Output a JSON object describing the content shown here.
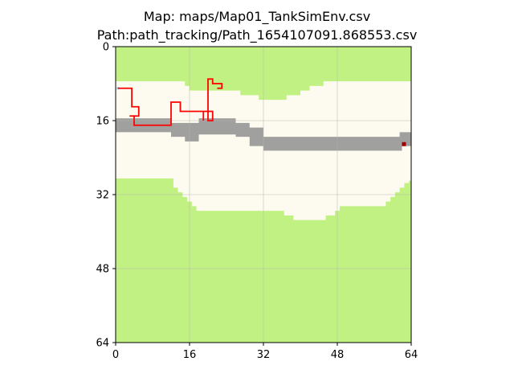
{
  "header": {
    "title_line1": "Map: maps/Map01_TankSimEnv.csv",
    "title_line2": "Path:path_tracking/Path_1654107091.868553.csv"
  },
  "chart_data": {
    "type": "heatmap",
    "xlim": [
      0,
      64
    ],
    "ylim": [
      64,
      0
    ],
    "x_ticks": [
      0,
      16,
      32,
      48,
      64
    ],
    "y_ticks": [
      0,
      16,
      32,
      48,
      64
    ],
    "grid": true,
    "colors": {
      "grass": "#c2f183",
      "free": "#fdfbef",
      "road": "#a0a09f",
      "path": "#ff0000",
      "goal": "#a00000",
      "start": "#9fc3e7"
    },
    "grass_top_bottom_edge": [
      [
        0,
        7.5
      ],
      [
        15,
        7.5
      ],
      [
        15,
        8.5
      ],
      [
        16,
        8.5
      ],
      [
        16,
        9.5
      ],
      [
        27,
        9.5
      ],
      [
        27,
        10.5
      ],
      [
        31,
        10.5
      ],
      [
        31,
        11.5
      ],
      [
        37,
        11.5
      ],
      [
        37,
        10.5
      ],
      [
        40,
        10.5
      ],
      [
        40,
        9.5
      ],
      [
        42,
        9.5
      ],
      [
        42,
        8.5
      ],
      [
        45,
        8.5
      ],
      [
        45,
        7.5
      ],
      [
        64,
        7.5
      ]
    ],
    "grass_bottom_top_edge": [
      [
        0,
        28.5
      ],
      [
        12.5,
        28.5
      ],
      [
        12.5,
        30.5
      ],
      [
        13.5,
        30.5
      ],
      [
        13.5,
        31.5
      ],
      [
        14.5,
        31.5
      ],
      [
        14.5,
        32.5
      ],
      [
        15.5,
        32.5
      ],
      [
        15.5,
        33.5
      ],
      [
        16.5,
        33.5
      ],
      [
        16.5,
        34.5
      ],
      [
        17.5,
        34.5
      ],
      [
        17.5,
        35.5
      ],
      [
        36.5,
        35.5
      ],
      [
        36.5,
        36.5
      ],
      [
        38.5,
        36.5
      ],
      [
        38.5,
        37.5
      ],
      [
        45.5,
        37.5
      ],
      [
        45.5,
        36.5
      ],
      [
        47.5,
        36.5
      ],
      [
        47.5,
        35.5
      ],
      [
        48.5,
        35.5
      ],
      [
        48.5,
        34.5
      ],
      [
        58.5,
        34.5
      ],
      [
        58.5,
        33.5
      ],
      [
        59.5,
        33.5
      ],
      [
        59.5,
        32.5
      ],
      [
        60.5,
        32.5
      ],
      [
        60.5,
        31.5
      ],
      [
        61.5,
        31.5
      ],
      [
        61.5,
        30.5
      ],
      [
        62.5,
        30.5
      ],
      [
        62.5,
        29.5
      ],
      [
        63.5,
        29.5
      ],
      [
        63.5,
        29
      ],
      [
        64,
        29
      ]
    ],
    "road_top_edge": [
      [
        0,
        15.5
      ],
      [
        12,
        15.5
      ],
      [
        12,
        16.5
      ],
      [
        18,
        16.5
      ],
      [
        18,
        15.5
      ],
      [
        26,
        15.5
      ],
      [
        26,
        16.5
      ],
      [
        29,
        16.5
      ],
      [
        29,
        17.5
      ],
      [
        32,
        17.5
      ],
      [
        32,
        19.5
      ],
      [
        61.5,
        19.5
      ],
      [
        61.5,
        18.5
      ],
      [
        64,
        18.5
      ]
    ],
    "road_bottom_edge": [
      [
        64,
        21.5
      ],
      [
        62,
        21.5
      ],
      [
        62,
        22.5
      ],
      [
        32,
        22.5
      ],
      [
        32,
        21.5
      ],
      [
        29,
        21.5
      ],
      [
        29,
        19.5
      ],
      [
        26,
        19.5
      ],
      [
        26,
        19
      ],
      [
        18,
        19
      ],
      [
        18,
        20.5
      ],
      [
        15,
        20.5
      ],
      [
        15,
        19.5
      ],
      [
        12,
        19.5
      ],
      [
        12,
        18.5
      ],
      [
        0,
        18.5
      ]
    ],
    "path": [
      [
        0.5,
        9
      ],
      [
        3.5,
        9
      ],
      [
        3.5,
        13
      ],
      [
        5,
        13
      ],
      [
        5,
        15
      ],
      [
        4,
        15
      ],
      [
        4,
        17
      ],
      [
        12,
        17
      ],
      [
        12,
        12
      ],
      [
        14,
        12
      ],
      [
        14,
        14
      ],
      [
        21,
        14
      ],
      [
        21,
        16
      ],
      [
        20,
        16
      ],
      [
        20,
        7
      ],
      [
        21,
        7
      ],
      [
        21,
        8
      ],
      [
        23,
        8
      ],
      [
        23,
        9
      ],
      [
        22,
        9
      ]
    ],
    "path_spur": [
      [
        3,
        15
      ],
      [
        4,
        15
      ]
    ],
    "path_spur2": [
      [
        19,
        14
      ],
      [
        19,
        16
      ]
    ],
    "start": [
      0.5,
      9
    ],
    "goal": [
      62,
      21
    ]
  }
}
